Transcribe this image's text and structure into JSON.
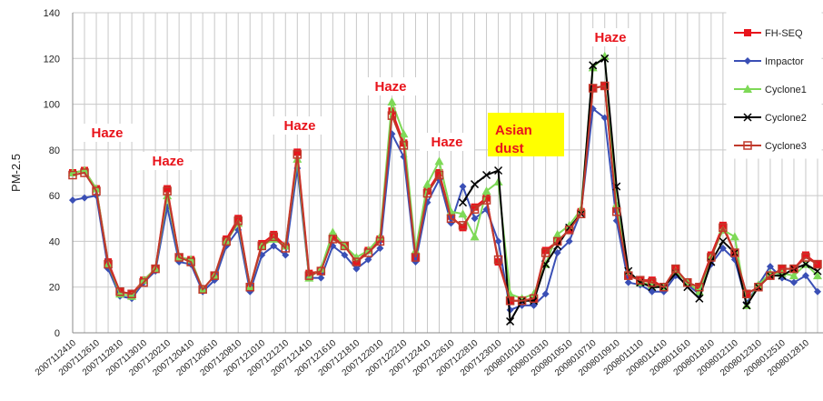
{
  "chart_data": {
    "type": "line",
    "y_label": "PM-2.5",
    "categories": [
      "2007112410",
      null,
      "2007112610",
      null,
      "2007112810",
      null,
      "2007113010",
      null,
      "2007120210",
      null,
      "2007120410",
      null,
      "2007120610",
      null,
      "2007120810",
      null,
      "2007121010",
      null,
      "2007121210",
      null,
      "2007121410",
      null,
      "2007121610",
      null,
      "2007121810",
      null,
      "2007122010",
      null,
      "2007122210",
      null,
      "2007122410",
      null,
      "2007122610",
      null,
      "2007122810",
      null,
      "2007123010",
      null,
      "2008010110",
      null,
      "2008010310",
      null,
      "2008010510",
      null,
      "2008010710",
      null,
      "2008010910",
      null,
      "2008011110",
      null,
      "2008011410",
      null,
      "2008011610",
      null,
      "2008011810",
      null,
      "2008012110",
      null,
      "2008012310",
      null,
      "2008012510",
      null,
      "2008012810",
      null
    ],
    "ylim": [
      0,
      140
    ],
    "yticks": [
      0,
      20,
      40,
      60,
      80,
      100,
      120,
      140
    ],
    "grid": true,
    "series": [
      {
        "name": "FH-SEQ",
        "color": "#e8141c",
        "marker": "square",
        "values": [
          70,
          71,
          63,
          31,
          18,
          17,
          23,
          28,
          63,
          33,
          32,
          19,
          25,
          41,
          50,
          20,
          39,
          43,
          38,
          79,
          26,
          27,
          42,
          38,
          31,
          36,
          41,
          97,
          83,
          33,
          62,
          70,
          51,
          46,
          55,
          59,
          31,
          14,
          14,
          15,
          36,
          40,
          45,
          53,
          107,
          108,
          54,
          25,
          23,
          23,
          20,
          28,
          22,
          20,
          34,
          47,
          35,
          17,
          20,
          25,
          28,
          28,
          34,
          30
        ]
      },
      {
        "name": "Impactor",
        "color": "#3a4fb5",
        "marker": "diamond",
        "values": [
          58,
          59,
          60,
          28,
          16,
          15,
          22,
          27,
          55,
          31,
          30,
          18,
          23,
          38,
          45,
          18,
          34,
          38,
          34,
          72,
          24,
          24,
          38,
          34,
          28,
          32,
          37,
          87,
          77,
          31,
          57,
          67,
          48,
          64,
          50,
          54,
          40,
          10,
          12,
          12,
          17,
          35,
          40,
          53,
          98,
          94,
          49,
          22,
          21,
          18,
          18,
          25,
          21,
          17,
          30,
          37,
          32,
          13,
          21,
          29,
          24,
          22,
          25,
          18
        ]
      },
      {
        "name": "Cyclone1",
        "color": "#7ed957",
        "marker": "triangle",
        "values": [
          70,
          71,
          63,
          30,
          17,
          16,
          23,
          28,
          60,
          33,
          32,
          19,
          25,
          40,
          48,
          20,
          38,
          41,
          38,
          76,
          24,
          28,
          44,
          38,
          33,
          36,
          42,
          101,
          87,
          36,
          65,
          75,
          53,
          52,
          42,
          62,
          66,
          17,
          15,
          17,
          30,
          43,
          47,
          54,
          116,
          121,
          56,
          27,
          22,
          21,
          20,
          27,
          22,
          18,
          33,
          45,
          42,
          12,
          21,
          26,
          26,
          25,
          30,
          25
        ]
      },
      {
        "name": "Cyclone2",
        "color": "#000000",
        "marker": "x",
        "values": [
          null,
          null,
          null,
          null,
          null,
          null,
          null,
          null,
          null,
          null,
          null,
          null,
          null,
          null,
          null,
          null,
          null,
          null,
          null,
          null,
          null,
          null,
          null,
          null,
          null,
          null,
          null,
          null,
          null,
          null,
          null,
          null,
          null,
          57,
          65,
          69,
          71,
          5,
          14,
          14,
          30,
          38,
          46,
          52,
          117,
          120,
          64,
          27,
          22,
          20,
          20,
          26,
          20,
          15,
          31,
          40,
          35,
          12,
          20,
          25,
          25,
          28,
          30,
          27
        ]
      },
      {
        "name": "Cyclone3",
        "color": "#c0392b",
        "marker": "open-square",
        "values": [
          69,
          70,
          62,
          30,
          18,
          17,
          22,
          28,
          62,
          33,
          31,
          19,
          25,
          40,
          49,
          20,
          38,
          42,
          37,
          78,
          25,
          27,
          41,
          38,
          31,
          35,
          40,
          95,
          82,
          33,
          61,
          69,
          50,
          47,
          54,
          58,
          32,
          14,
          14,
          15,
          35,
          40,
          45,
          52,
          107,
          108,
          53,
          25,
          23,
          22,
          20,
          28,
          22,
          20,
          33,
          46,
          35,
          17,
          20,
          25,
          28,
          28,
          33,
          30
        ]
      }
    ],
    "annotations": [
      "Haze",
      "Haze",
      "Haze",
      "Haze",
      "Haze",
      "Asian dust",
      "Haze"
    ]
  }
}
